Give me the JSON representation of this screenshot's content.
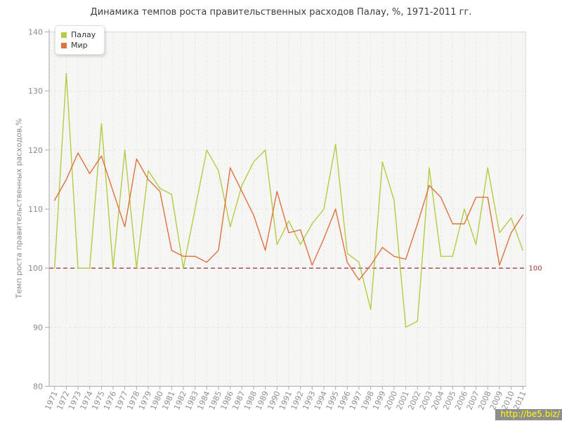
{
  "watermark": "http://be5.biz/",
  "colors": {
    "plot_background": "#f6f6f4",
    "plot_border": "#dbdbd9",
    "axis": "#a9a9a9",
    "grid": "#e3e3e0",
    "tick_text": "#8b8b8b",
    "reference_line": "#a8394a",
    "palau": "#b5cb45",
    "world": "#e0713f"
  },
  "chart_data": {
    "type": "line",
    "title": "Динамика темпов роста правительственных расходов Палау, %, 1971-2011 гг.",
    "xlabel": "",
    "ylabel": "Темп роста правительственных расходов,%",
    "ylim": [
      80,
      140
    ],
    "yticks": [
      80,
      90,
      100,
      110,
      120,
      130,
      140
    ],
    "grid": true,
    "legend_position": "top-left",
    "reference_line": {
      "value": 100,
      "label": "100"
    },
    "categories": [
      1971,
      1972,
      1973,
      1974,
      1975,
      1976,
      1977,
      1978,
      1979,
      1980,
      1981,
      1982,
      1983,
      1984,
      1985,
      1986,
      1987,
      1988,
      1989,
      1990,
      1991,
      1992,
      1993,
      1994,
      1995,
      1996,
      1997,
      1998,
      1999,
      2000,
      2001,
      2002,
      2003,
      2004,
      2005,
      2006,
      2007,
      2008,
      2009,
      2010,
      2011
    ],
    "series": [
      {
        "name": "Палау",
        "color": "#b5cb45",
        "values": [
          100,
          133,
          100,
          100,
          124.5,
          100,
          120,
          100,
          116.5,
          113.5,
          112.5,
          100,
          110,
          120,
          116.5,
          107,
          114,
          118,
          120,
          104,
          108,
          104,
          107.5,
          110,
          121,
          102.5,
          101,
          93,
          118,
          111.5,
          90,
          91,
          117,
          102,
          102,
          110,
          104,
          117,
          106,
          108.5,
          103
        ]
      },
      {
        "name": "Мир",
        "color": "#e0713f",
        "values": [
          111.5,
          115,
          119.5,
          116,
          119,
          113,
          107,
          118.5,
          115,
          113,
          103,
          102,
          102,
          101,
          103,
          117,
          113,
          109,
          103,
          113,
          106,
          106.5,
          100.5,
          105,
          110,
          101,
          98,
          100.5,
          103.5,
          102,
          101.5,
          107.5,
          114,
          112,
          107.5,
          107.5,
          112,
          112,
          100.5,
          106,
          109
        ]
      }
    ]
  }
}
